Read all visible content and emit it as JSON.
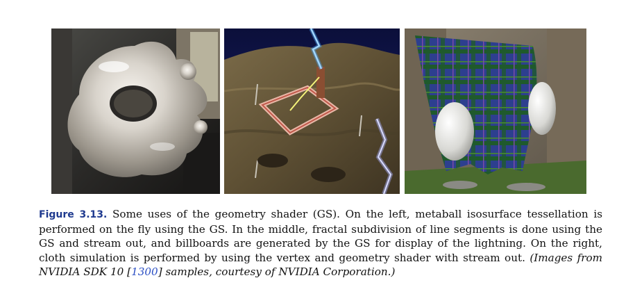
{
  "figure": {
    "label": "Figure 3.13.",
    "caption": "Some uses of the geometry shader (GS). On the left, metaball isosurface tessellation is performed on the fly using the GS. In the middle, fractal subdivision of line segments is done using the GS and stream out, and billboards are generated by the GS for display of the lightning. On the right, cloth simulation is performed by using the vertex and geometry shader with stream out.",
    "credit_prefix": "(Images from NVIDIA SDK 10 [",
    "credit_ref": "1300",
    "credit_suffix": "] samples, courtesy of NVIDIA Corporation.)"
  },
  "panels": [
    {
      "name": "metaball-image",
      "subject": "metaball isosurface"
    },
    {
      "name": "fractal-lightning-image",
      "subject": "fractal lightning over terrain"
    },
    {
      "name": "cloth-simulation-image",
      "subject": "tartan cloth draped over capsules"
    }
  ]
}
